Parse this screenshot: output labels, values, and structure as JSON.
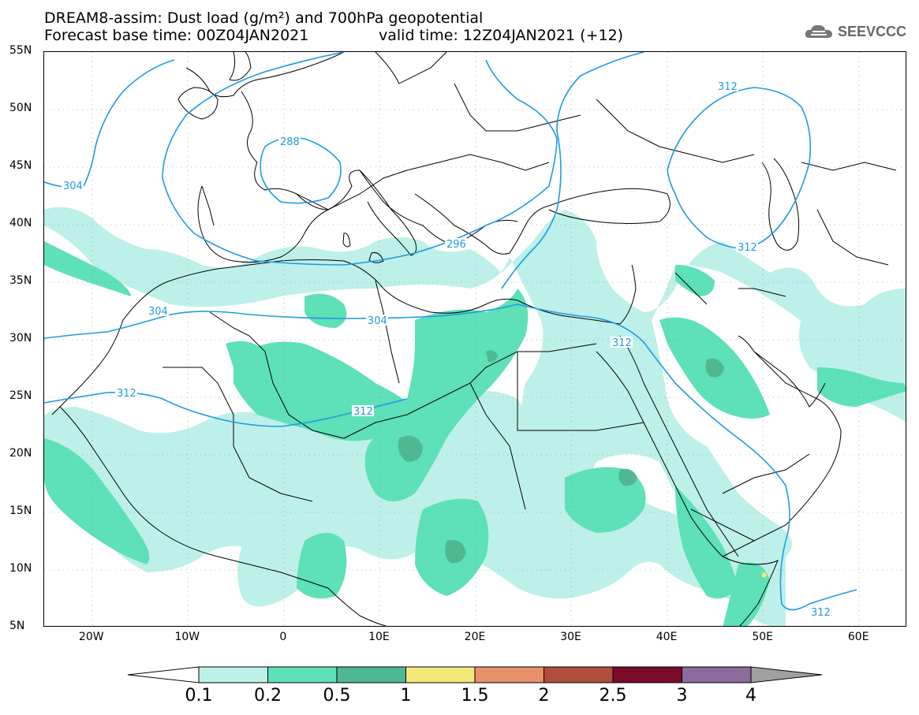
{
  "title": {
    "line1": "DREAM8-assim: Dust load (g/m²) and 700hPa geopotential",
    "line2": "Forecast base time: 00Z04JAN2021",
    "valid": "valid time: 12Z04JAN2021 (+12)"
  },
  "logo": {
    "text": "SEEVCCC",
    "icon": "cloud-icon"
  },
  "axes": {
    "lat_labels": [
      "55N",
      "50N",
      "45N",
      "40N",
      "35N",
      "30N",
      "25N",
      "20N",
      "15N",
      "10N",
      "5N"
    ],
    "lon_labels": [
      "20W",
      "10W",
      "0",
      "10E",
      "20E",
      "30E",
      "40E",
      "50E",
      "60E"
    ],
    "lon_range": [
      -25,
      65
    ],
    "lat_range": [
      5,
      55
    ]
  },
  "contours": {
    "labels": [
      "304",
      "288",
      "312",
      "296",
      "304",
      "304",
      "312",
      "312",
      "312",
      "312",
      "312"
    ],
    "color": "#1e9be6"
  },
  "colorbar": {
    "labels": [
      "0.1",
      "0.2",
      "0.5",
      "1",
      "1.5",
      "2",
      "2.5",
      "3",
      "4"
    ],
    "colors": [
      "#ffffff",
      "#bdf0e8",
      "#5ee0b8",
      "#4fb892",
      "#f2e87a",
      "#e8906a",
      "#b04e3e",
      "#7a0a2a",
      "#8c6a9c",
      "#a0a0a0"
    ]
  }
}
